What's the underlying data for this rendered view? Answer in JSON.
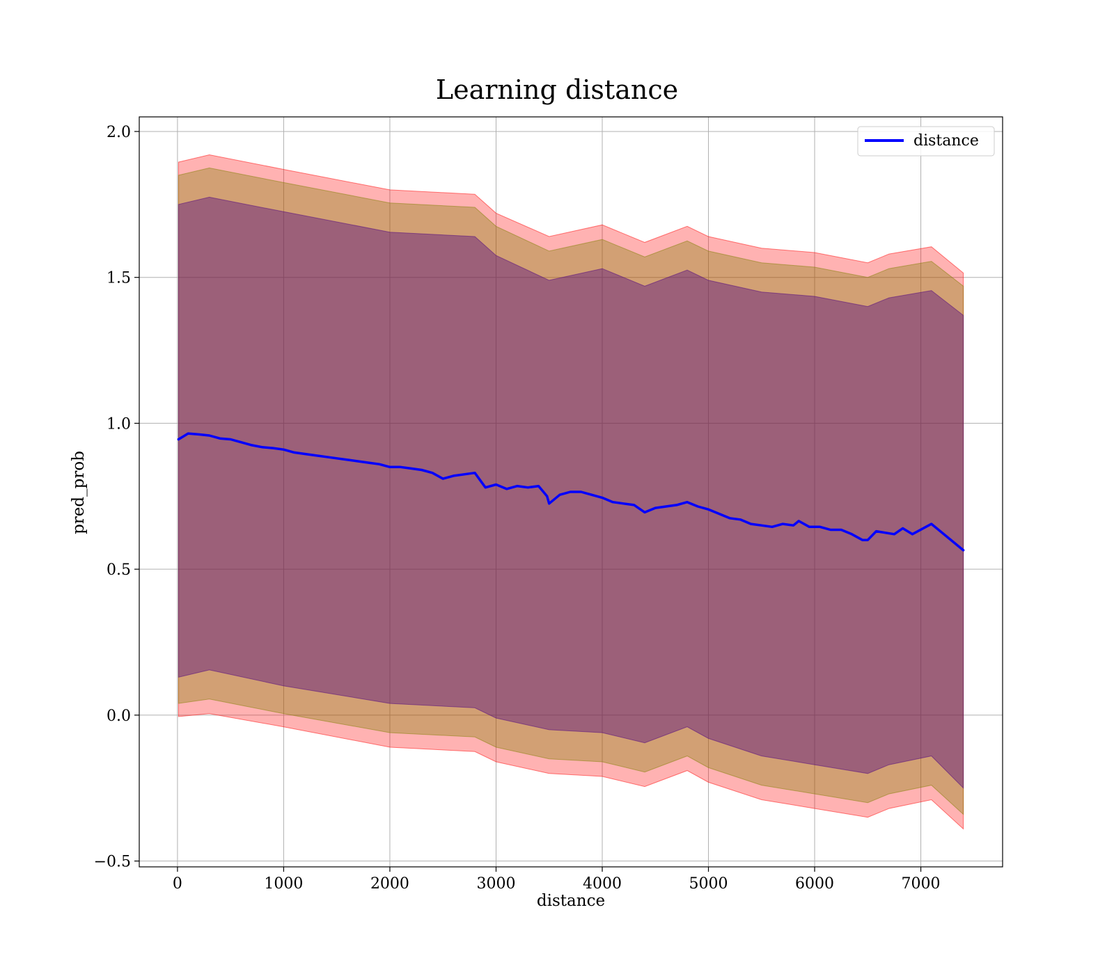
{
  "chart_data": {
    "type": "line",
    "title": "Learning distance",
    "xlabel": "distance",
    "ylabel": "pred_prob",
    "xlim": [
      -360,
      7770
    ],
    "ylim": [
      -0.52,
      2.05
    ],
    "x_ticks": [
      0,
      1000,
      2000,
      3000,
      4000,
      5000,
      6000,
      7000
    ],
    "y_ticks": [
      -0.5,
      0.0,
      0.5,
      1.0,
      1.5,
      2.0
    ],
    "y_tick_labels": [
      "−0.5",
      "0.0",
      "0.5",
      "1.0",
      "1.5",
      "2.0"
    ],
    "grid": true,
    "legend": {
      "placement": "top-right",
      "entries": [
        "distance"
      ]
    },
    "series": [
      {
        "name": "distance",
        "color": "#0000ff",
        "x": [
          10,
          100,
          200,
          300,
          400,
          500,
          600,
          700,
          800,
          900,
          1000,
          1100,
          1200,
          1300,
          1400,
          1500,
          1600,
          1700,
          1800,
          1900,
          2000,
          2100,
          2200,
          2300,
          2400,
          2500,
          2600,
          2700,
          2800,
          2900,
          3000,
          3100,
          3200,
          3300,
          3400,
          3480,
          3500,
          3600,
          3700,
          3800,
          3900,
          4000,
          4100,
          4200,
          4300,
          4400,
          4500,
          4600,
          4700,
          4800,
          4900,
          5000,
          5100,
          5200,
          5300,
          5400,
          5500,
          5600,
          5700,
          5800,
          5850,
          5950,
          6050,
          6150,
          6250,
          6350,
          6450,
          6500,
          6580,
          6750,
          6830,
          6920,
          7100,
          7400
        ],
        "values": [
          0.945,
          0.965,
          0.962,
          0.958,
          0.948,
          0.945,
          0.935,
          0.925,
          0.918,
          0.915,
          0.91,
          0.9,
          0.895,
          0.89,
          0.885,
          0.88,
          0.875,
          0.87,
          0.865,
          0.86,
          0.85,
          0.85,
          0.845,
          0.84,
          0.83,
          0.81,
          0.82,
          0.825,
          0.83,
          0.78,
          0.79,
          0.775,
          0.785,
          0.78,
          0.785,
          0.75,
          0.725,
          0.755,
          0.765,
          0.765,
          0.755,
          0.745,
          0.73,
          0.725,
          0.72,
          0.695,
          0.71,
          0.715,
          0.72,
          0.73,
          0.715,
          0.705,
          0.69,
          0.675,
          0.67,
          0.655,
          0.65,
          0.645,
          0.655,
          0.65,
          0.665,
          0.645,
          0.645,
          0.635,
          0.635,
          0.62,
          0.6,
          0.6,
          0.63,
          0.62,
          0.64,
          0.62,
          0.655,
          0.565
        ]
      }
    ],
    "bands": [
      {
        "color": "#ff0000",
        "opacity": 0.3,
        "x": [
          10,
          300,
          1000,
          2000,
          2800,
          3000,
          3500,
          4000,
          4400,
          4800,
          5000,
          5500,
          6000,
          6500,
          6700,
          7100,
          7400
        ],
        "upper": [
          1.895,
          1.92,
          1.87,
          1.8,
          1.785,
          1.72,
          1.64,
          1.68,
          1.62,
          1.675,
          1.64,
          1.6,
          1.585,
          1.55,
          1.58,
          1.605,
          1.515
        ],
        "lower": [
          -0.005,
          0.005,
          -0.04,
          -0.11,
          -0.125,
          -0.16,
          -0.2,
          -0.21,
          -0.245,
          -0.19,
          -0.23,
          -0.29,
          -0.32,
          -0.35,
          -0.32,
          -0.29,
          -0.39
        ]
      },
      {
        "color": "#7f7f00",
        "opacity": 0.35,
        "x": [
          10,
          300,
          1000,
          2000,
          2800,
          3000,
          3500,
          4000,
          4400,
          4800,
          5000,
          5500,
          6000,
          6500,
          6700,
          7100,
          7400
        ],
        "upper": [
          1.85,
          1.875,
          1.825,
          1.755,
          1.74,
          1.675,
          1.59,
          1.63,
          1.57,
          1.625,
          1.59,
          1.55,
          1.535,
          1.5,
          1.53,
          1.555,
          1.47
        ],
        "lower": [
          0.04,
          0.055,
          0.005,
          -0.06,
          -0.075,
          -0.11,
          -0.15,
          -0.16,
          -0.195,
          -0.14,
          -0.18,
          -0.24,
          -0.27,
          -0.3,
          -0.27,
          -0.24,
          -0.34
        ]
      },
      {
        "color": "#4b0082",
        "opacity": 0.4,
        "x": [
          10,
          300,
          1000,
          2000,
          2800,
          3000,
          3500,
          4000,
          4400,
          4800,
          5000,
          5500,
          6000,
          6500,
          6700,
          7100,
          7400
        ],
        "upper": [
          1.75,
          1.775,
          1.725,
          1.655,
          1.64,
          1.575,
          1.49,
          1.53,
          1.47,
          1.525,
          1.49,
          1.45,
          1.435,
          1.4,
          1.43,
          1.455,
          1.37
        ],
        "lower": [
          0.13,
          0.155,
          0.1,
          0.04,
          0.025,
          -0.01,
          -0.05,
          -0.06,
          -0.095,
          -0.04,
          -0.08,
          -0.14,
          -0.17,
          -0.2,
          -0.17,
          -0.14,
          -0.25
        ]
      }
    ]
  }
}
